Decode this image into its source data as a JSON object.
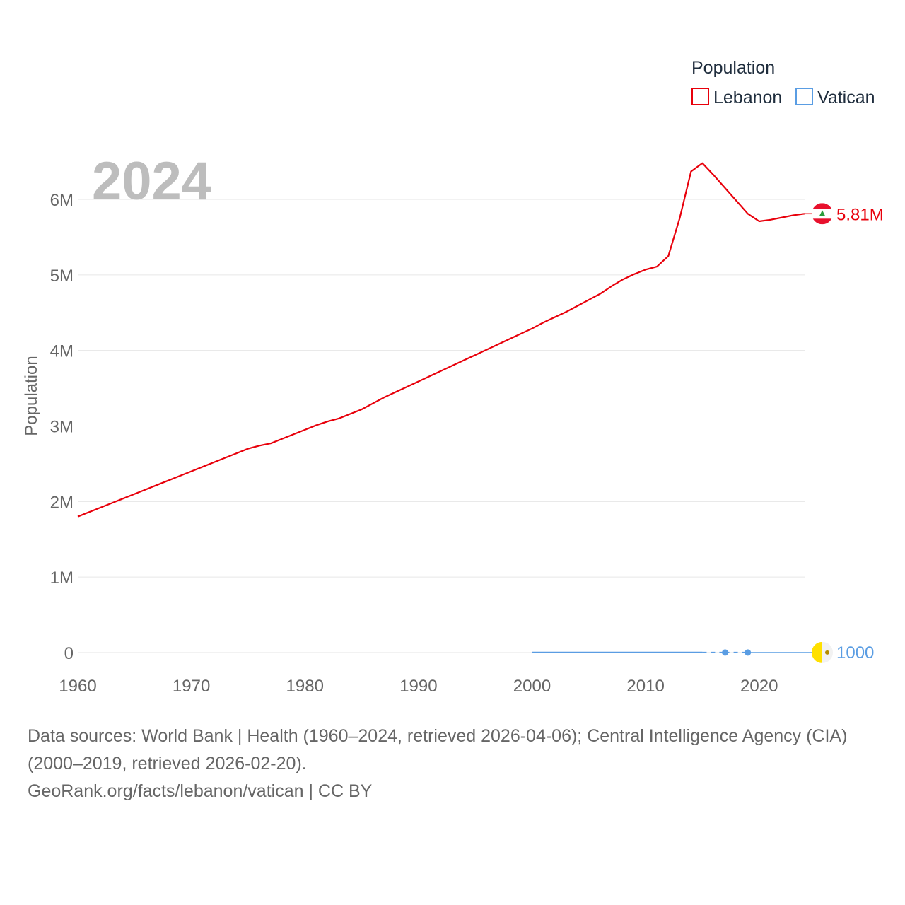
{
  "chart_data": {
    "type": "line",
    "title": "",
    "year_display": "2024",
    "ylabel": "Population",
    "xlabel": "",
    "xlim": [
      1960,
      2024
    ],
    "ylim": [
      0,
      6500000
    ],
    "grid": true,
    "x_ticks": [
      1960,
      1970,
      1980,
      1990,
      2000,
      2010,
      2020
    ],
    "x_tick_labels": [
      "1960",
      "1970",
      "1980",
      "1990",
      "2000",
      "2010",
      "2020"
    ],
    "y_ticks": [
      0,
      1000000,
      2000000,
      3000000,
      4000000,
      5000000,
      6000000
    ],
    "y_tick_labels": [
      "0",
      "1M",
      "2M",
      "3M",
      "4M",
      "5M",
      "6M"
    ],
    "legend": {
      "title": "Population",
      "placement": "top-right",
      "entries": [
        "Lebanon",
        "Vatican"
      ]
    },
    "series": [
      {
        "name": "Lebanon",
        "color": "#e8000b",
        "end_label": "5.81M",
        "flag": "lebanon-flag",
        "x": [
          1960,
          1961,
          1962,
          1963,
          1964,
          1965,
          1966,
          1967,
          1968,
          1969,
          1970,
          1971,
          1972,
          1973,
          1974,
          1975,
          1976,
          1977,
          1978,
          1979,
          1980,
          1981,
          1982,
          1983,
          1984,
          1985,
          1986,
          1987,
          1988,
          1989,
          1990,
          1991,
          1992,
          1993,
          1994,
          1995,
          1996,
          1997,
          1998,
          1999,
          2000,
          2001,
          2002,
          2003,
          2004,
          2005,
          2006,
          2007,
          2008,
          2009,
          2010,
          2011,
          2012,
          2013,
          2014,
          2015,
          2016,
          2017,
          2018,
          2019,
          2020,
          2021,
          2022,
          2023,
          2024
        ],
        "values": [
          1800000,
          1860000,
          1920000,
          1980000,
          2040000,
          2100000,
          2160000,
          2220000,
          2280000,
          2340000,
          2400000,
          2460000,
          2520000,
          2580000,
          2640000,
          2700000,
          2740000,
          2770000,
          2830000,
          2890000,
          2950000,
          3010000,
          3060000,
          3100000,
          3160000,
          3220000,
          3300000,
          3380000,
          3450000,
          3520000,
          3590000,
          3660000,
          3730000,
          3800000,
          3870000,
          3940000,
          4010000,
          4080000,
          4150000,
          4220000,
          4290000,
          4370000,
          4440000,
          4510000,
          4590000,
          4670000,
          4750000,
          4850000,
          4940000,
          5010000,
          5070000,
          5110000,
          5250000,
          5750000,
          6370000,
          6480000,
          6320000,
          6150000,
          5980000,
          5810000,
          5710000,
          5730000,
          5760000,
          5790000,
          5810000
        ]
      },
      {
        "name": "Vatican",
        "color": "#5a9de3",
        "end_label": "1000",
        "flag": "vatican-flag",
        "x": [
          2000,
          2001,
          2002,
          2003,
          2004,
          2005,
          2006,
          2007,
          2008,
          2009,
          2010,
          2011,
          2012,
          2013,
          2014,
          2015,
          2017,
          2019
        ],
        "values": [
          920,
          920,
          920,
          930,
          930,
          930,
          930,
          930,
          930,
          930,
          930,
          930,
          840,
          840,
          840,
          840,
          1000,
          1000
        ],
        "gap_segments": [
          [
            2015,
            2017
          ],
          [
            2017,
            2019
          ]
        ],
        "point_markers": [
          2017,
          2019
        ],
        "projection": {
          "from": 2019,
          "to": 2024,
          "value": 1000
        }
      }
    ]
  },
  "source": {
    "line1": "Data sources: World Bank | Health (1960–2024, retrieved 2026-04-06); Central Intelligence Agency (CIA) (2000–2019, retrieved 2026-02-20).",
    "line2": "GeoRank.org/facts/lebanon/vatican | CC BY"
  }
}
